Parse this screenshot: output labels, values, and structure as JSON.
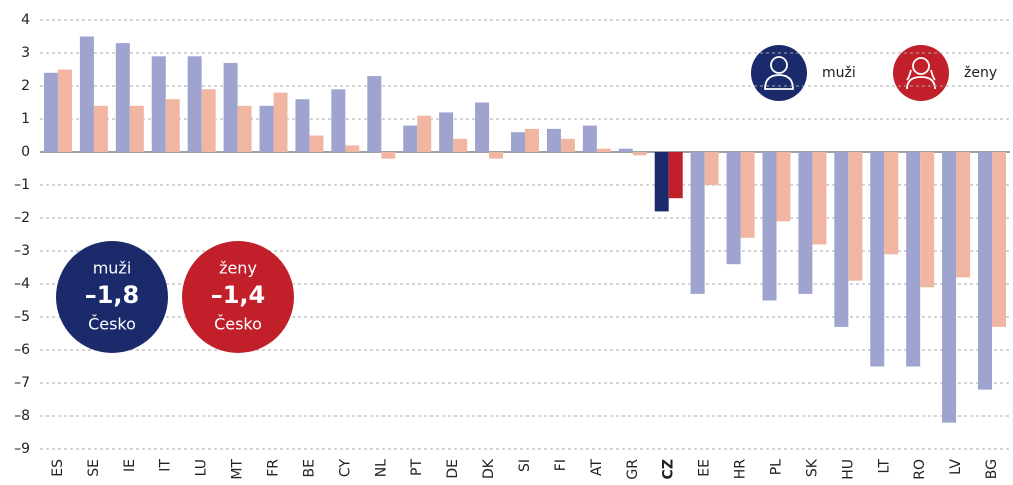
{
  "chart_data": {
    "type": "bar",
    "categories": [
      "ES",
      "SE",
      "IE",
      "IT",
      "LU",
      "MT",
      "FR",
      "BE",
      "CY",
      "NL",
      "PT",
      "DE",
      "DK",
      "SI",
      "FI",
      "AT",
      "GR",
      "CZ",
      "EE",
      "HR",
      "PL",
      "SK",
      "HU",
      "LT",
      "RO",
      "LV",
      "BG"
    ],
    "series": [
      {
        "name": "muži",
        "color": "#9ea3cf",
        "highlight_color": "#1b2a6b",
        "values": [
          2.4,
          3.5,
          3.3,
          2.9,
          2.9,
          2.7,
          1.4,
          1.6,
          1.9,
          2.3,
          0.8,
          1.2,
          1.5,
          0.6,
          0.7,
          0.8,
          0.1,
          -1.8,
          -4.3,
          -3.4,
          -4.5,
          -4.3,
          -5.3,
          -6.5,
          -6.5,
          -8.2,
          -7.2
        ]
      },
      {
        "name": "ženy",
        "color": "#f0b6a2",
        "highlight_color": "#c1202b",
        "values": [
          2.5,
          1.4,
          1.4,
          1.6,
          1.9,
          1.4,
          1.8,
          0.5,
          0.2,
          -0.2,
          1.1,
          0.4,
          -0.2,
          0.7,
          0.4,
          0.1,
          -0.1,
          -1.4,
          -1.0,
          -2.6,
          -2.1,
          -2.8,
          -3.9,
          -3.1,
          -4.1,
          -3.8,
          -5.3
        ]
      }
    ],
    "highlight_category": "CZ",
    "ylim": [
      -9,
      4
    ],
    "yticks": [
      {
        "value": -9,
        "label": "–9"
      },
      {
        "value": -8,
        "label": "–8"
      },
      {
        "value": -7,
        "label": "–7"
      },
      {
        "value": -6,
        "label": "–6"
      },
      {
        "value": -5,
        "label": "–5"
      },
      {
        "value": -4,
        "label": "–4"
      },
      {
        "value": -3,
        "label": "–3"
      },
      {
        "value": -2,
        "label": "–2"
      },
      {
        "value": -1,
        "label": "–1"
      },
      0,
      1,
      2,
      3,
      4
    ],
    "grid": true,
    "legend": "top-right",
    "annotations": [
      {
        "label": "muži",
        "value": "–1,8",
        "place": "Česko"
      },
      {
        "label": "ženy",
        "value": "–1,4",
        "place": "Česko"
      }
    ]
  }
}
